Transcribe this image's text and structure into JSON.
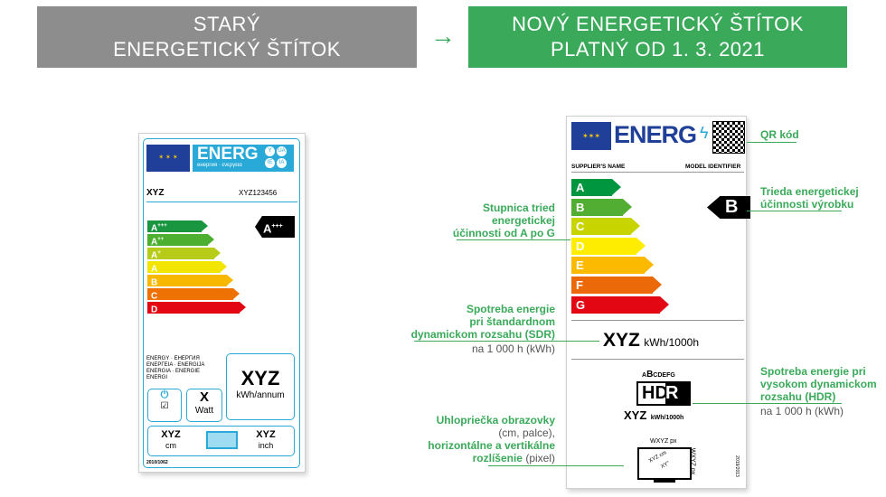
{
  "header": {
    "old": [
      "STARÝ",
      "ENERGETICKÝ ŠTÍTOK"
    ],
    "arrow": "→",
    "new": [
      "NOVÝ ENERGETICKÝ ŠTÍTOK",
      "PLATNÝ OD 1. 3. 2021"
    ]
  },
  "colors": {
    "old_header": "#8d8d8d",
    "new_header": "#3aaa5a",
    "accent": "#3aaa5a",
    "old_label_blue": "#29a9d8",
    "eu_blue": "#1f3f99"
  },
  "old_label": {
    "logo": "ENERG",
    "logo_sub": "енергия · ενεργεια",
    "lang_badges": [
      "Y",
      "UA",
      "IE",
      "IA"
    ],
    "supplier": "XYZ",
    "model": "XYZ123456",
    "classes": [
      {
        "l": "A",
        "s": "+++",
        "c": "#1a9641"
      },
      {
        "l": "A",
        "s": "++",
        "c": "#4caf30"
      },
      {
        "l": "A",
        "s": "+",
        "c": "#b7cc18"
      },
      {
        "l": "A",
        "s": "",
        "c": "#f2e500"
      },
      {
        "l": "B",
        "s": "",
        "c": "#f9b800"
      },
      {
        "l": "C",
        "s": "",
        "c": "#ee7203"
      },
      {
        "l": "D",
        "s": "",
        "c": "#e30613"
      }
    ],
    "rating": {
      "l": "A",
      "s": "+++"
    },
    "energy_words": [
      "ENERGY · ЕНЕРГИЯ",
      "ENEPΓEIA · ENERGIJA",
      "ENERGIA · ENERGIE",
      "ENERGI"
    ],
    "consumption": "XYZ",
    "consumption_unit": "kWh/annum",
    "standby_icon": "power-icon",
    "power": "X",
    "power_unit": "Watt",
    "diag_cm": "XYZ",
    "cm": "cm",
    "diag_inch": "XYZ",
    "inch": "inch",
    "regulation": "2010/1062"
  },
  "new_label": {
    "logo": "ENERG",
    "supplier": "SUPPLIER'S NAME",
    "model": "MODEL IDENTIFIER",
    "classes": [
      {
        "l": "A",
        "c": "#009640"
      },
      {
        "l": "B",
        "c": "#52ae32"
      },
      {
        "l": "C",
        "c": "#c8d400"
      },
      {
        "l": "D",
        "c": "#ffed00"
      },
      {
        "l": "E",
        "c": "#fbba00"
      },
      {
        "l": "F",
        "c": "#eb6909"
      },
      {
        "l": "G",
        "c": "#e30613"
      }
    ],
    "rating": "B",
    "sdr_value": "XYZ",
    "sdr_unit": "kWh/1000h",
    "hdr_scale_pre": "A",
    "hdr_scale_b": "B",
    "hdr_scale_post": "CDEFG",
    "hdr_h": "HD",
    "hdr_r": "R",
    "hdr_value": "XYZ",
    "hdr_unit": "kWh/1000h",
    "res_h": "WXYZ px",
    "res_v": "WXYZ px",
    "diag_cm": "XYZ cm",
    "diag_in": "XY\"",
    "regulation": "2019/2013"
  },
  "annotations": {
    "qr": "QR kód",
    "class": [
      "Trieda energetickej",
      "účinnosti výrobku"
    ],
    "scale": [
      "Stupnica tried",
      "energetickej",
      "účinnosti od A po G"
    ],
    "sdr": [
      "Spotreba energie",
      "pri štandardnom",
      "dynamickom rozsahu (SDR)"
    ],
    "sdr_note": "na 1 000 h (kWh)",
    "hdr": [
      "Spotreba energie pri",
      "vysokom dynamickom",
      "rozsahu (HDR)"
    ],
    "hdr_note": "na 1 000 h (kWh)",
    "screen_1": "Uhlopriečka obrazovky",
    "screen_2": "(cm, palce),",
    "screen_3": "horizontálne a vertikálne",
    "screen_4a": "rozlíšenie",
    "screen_4b": " (pixel)"
  }
}
